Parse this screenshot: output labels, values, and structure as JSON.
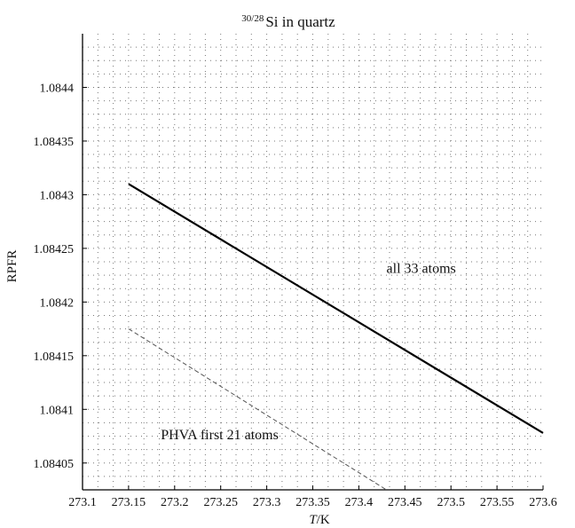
{
  "chart_data": {
    "type": "line",
    "title_sup": "30/28",
    "title_main": "Si in quartz",
    "xlabel_italic": "T",
    "xlabel_rest": "/K",
    "ylabel": "RPFR",
    "xlim": [
      273.1,
      273.6
    ],
    "ylim": [
      1.084025,
      1.08445
    ],
    "xticks": [
      273.1,
      273.15,
      273.2,
      273.25,
      273.3,
      273.35,
      273.4,
      273.45,
      273.5,
      273.55,
      273.6
    ],
    "xtick_labels": [
      "273.1",
      "273.15",
      "273.2",
      "273.25",
      "273.3",
      "273.35",
      "273.4",
      "273.45",
      "273.5",
      "273.55",
      "273.6"
    ],
    "yticks": [
      1.08405,
      1.0841,
      1.08415,
      1.0842,
      1.08425,
      1.0843,
      1.08435,
      1.0844
    ],
    "ytick_labels": [
      "1.08405",
      "1.0841",
      "1.08415",
      "1.0842",
      "1.08425",
      "1.0843",
      "1.08435",
      "1.0844"
    ],
    "grid": true,
    "series": [
      {
        "label": "all 33 atoms",
        "style": "solid",
        "color": "#000000",
        "x": [
          273.15,
          273.6
        ],
        "y": [
          1.08431,
          1.084078
        ]
      },
      {
        "label": "PHVA first 21 atoms",
        "style": "dashed",
        "color": "#555555",
        "x": [
          273.15,
          273.43
        ],
        "y": [
          1.084175,
          1.084025
        ]
      }
    ],
    "annotations": [
      {
        "text": "all 33 atoms",
        "x": 273.43,
        "y": 1.084227
      },
      {
        "text": "PHVA first 21 atoms",
        "x": 273.185,
        "y": 1.084072
      }
    ]
  }
}
